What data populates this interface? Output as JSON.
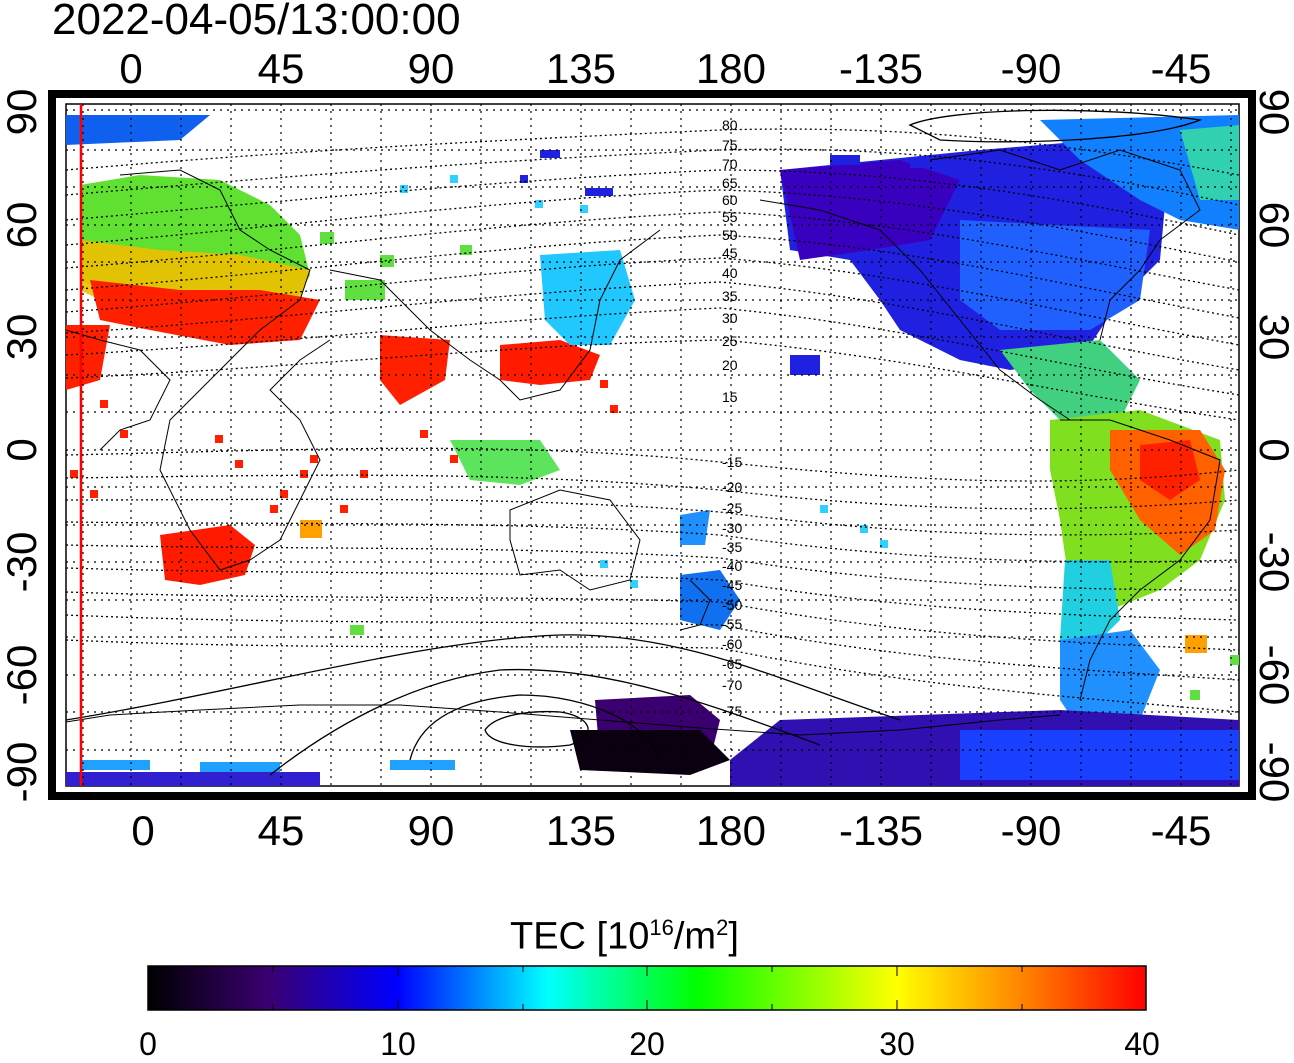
{
  "title": "2022-04-05/13:00:00",
  "map": {
    "top_lon_ticks": [
      "0",
      "45",
      "90",
      "135",
      "180",
      "-135",
      "-90",
      "-45"
    ],
    "bottom_lon_ticks": [
      "0",
      "45",
      "90",
      "135",
      "180",
      "-135",
      "-90",
      "-45"
    ],
    "left_lat_ticks": [
      "90",
      "60",
      "30",
      "0",
      "-30",
      "-60",
      "-90"
    ],
    "right_lat_ticks": [
      "90",
      "60",
      "30",
      "0",
      "-30",
      "-60",
      "-90"
    ],
    "lon_range": [
      -20,
      340
    ],
    "lat_range": [
      -90,
      90
    ],
    "grid": "dotted",
    "terminator_color": "#ff0000",
    "contour_labels_north": [
      "80",
      "75",
      "70",
      "65",
      "60",
      "55",
      "50",
      "45",
      "40",
      "35",
      "30",
      "25",
      "20",
      "15"
    ],
    "contour_labels_south": [
      "-15",
      "-20",
      "-25",
      "-30",
      "-35",
      "-40",
      "-45",
      "-50",
      "-55",
      "-60",
      "-65",
      "-70",
      "-75"
    ]
  },
  "colorbar": {
    "title_prefix": "TEC  [10",
    "title_exp1": "16",
    "title_mid": "/m",
    "title_exp2": "2",
    "title_suffix": "]",
    "ticks": [
      "0",
      "10",
      "20",
      "30",
      "40"
    ],
    "min": 0,
    "max": 40,
    "colors": [
      "#000000",
      "#4b007f",
      "#0000ff",
      "#00ffff",
      "#00ff00",
      "#ffff00",
      "#ff8000",
      "#ff0000"
    ]
  }
}
